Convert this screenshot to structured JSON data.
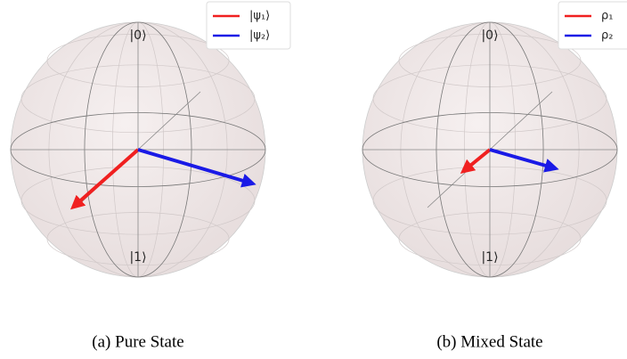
{
  "figures": [
    {
      "caption": "(a) Pure State",
      "north_label": "|0⟩",
      "south_label": "|1⟩",
      "legend": [
        "|ψ₁⟩",
        "|ψ₂⟩"
      ]
    },
    {
      "caption": "(b) Mixed State",
      "north_label": "|0⟩",
      "south_label": "|1⟩",
      "legend": [
        "ρ₁",
        "ρ₂"
      ]
    }
  ]
}
